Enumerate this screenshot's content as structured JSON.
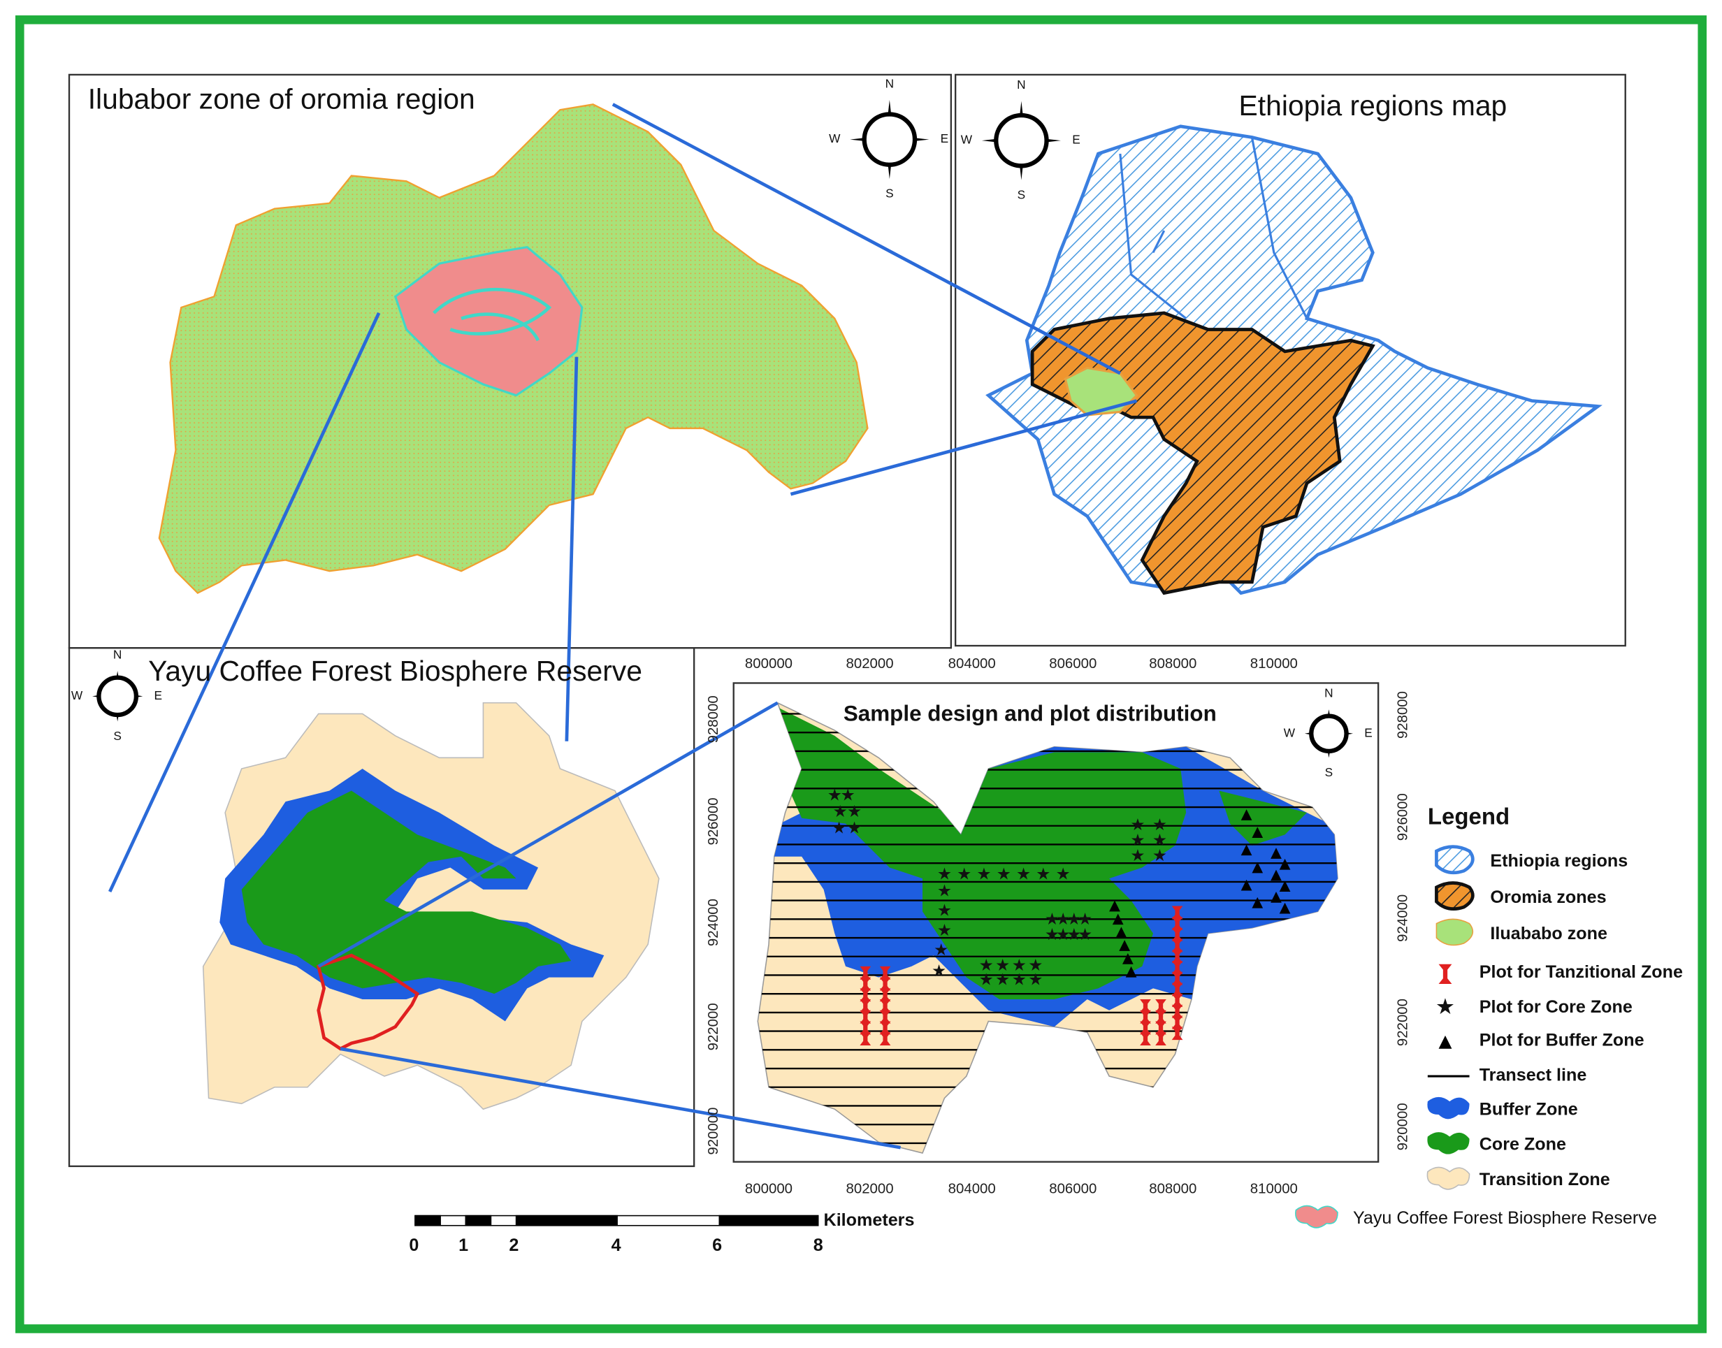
{
  "panels": [
    {
      "title": "Ilubabor zone of oromia region",
      "compass": {
        "N": "N",
        "S": "S",
        "E": "E",
        "W": "W"
      }
    },
    {
      "title": "Ethiopia regions map",
      "compass": {
        "N": "N",
        "S": "S",
        "E": "E",
        "W": "W"
      }
    },
    {
      "title": "Yayu Coffee Forest Biosphere Reserve",
      "compass": {
        "N": "N",
        "S": "S",
        "E": "E",
        "W": "W"
      }
    },
    {
      "title": "Sample design and plot distribution",
      "compass": {
        "N": "N",
        "S": "S",
        "E": "E",
        "W": "W"
      }
    }
  ],
  "sample_map": {
    "x_labels_top": [
      800000,
      802000,
      804000,
      806000,
      808000,
      810000
    ],
    "x_labels_bottom": [
      800000,
      802000,
      804000,
      806000,
      808000,
      810000
    ],
    "y_labels_left": [
      928000,
      926000,
      924000,
      922000,
      920000
    ],
    "y_labels_right": [
      928000,
      926000,
      924000,
      922000,
      920000
    ]
  },
  "legend": {
    "title": "Legend",
    "items": [
      "Ethiopia regions",
      "Oromia zones",
      "Iluababo zone",
      "Plot for Tanzitional Zone",
      "Plot for Core  Zone",
      "Plot for  Buffer Zone",
      "Transect line",
      "Buffer Zone",
      "Core  Zone",
      "Transition Zone",
      "Yayu Coffee Forest Biosphere Reserve"
    ]
  },
  "scale_bar": {
    "unit": "Kilometers",
    "labels": [
      "0",
      "1",
      "2",
      "4",
      "6",
      "8"
    ]
  }
}
